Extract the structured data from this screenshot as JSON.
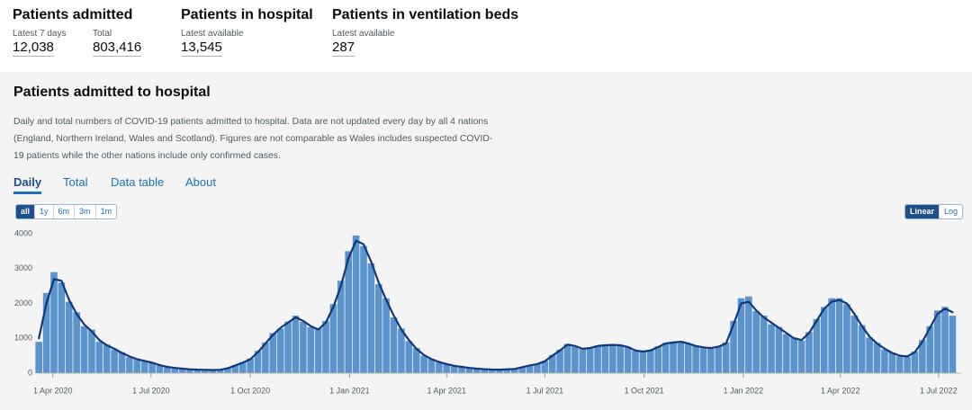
{
  "headline": [
    {
      "title": "Patients admitted",
      "metrics": [
        {
          "label": "Latest 7 days",
          "value": "12,038"
        },
        {
          "label": "Total",
          "value": "803,416"
        }
      ]
    },
    {
      "title": "Patients in hospital",
      "metrics": [
        {
          "label": "Latest available",
          "value": "13,545"
        }
      ]
    },
    {
      "title": "Patients in ventilation beds",
      "metrics": [
        {
          "label": "Latest available",
          "value": "287"
        }
      ]
    }
  ],
  "card": {
    "title": "Patients admitted to hospital",
    "description": "Daily and total numbers of COVID-19 patients admitted to hospital. Data are not updated every day by all 4 nations (England, Northern Ireland, Wales and Scotland). Figures are not comparable as Wales includes suspected COVID-19 patients while the other nations include only confirmed cases.",
    "tabs": [
      "Daily",
      "Total",
      "Data table",
      "About"
    ],
    "active_tab": 0,
    "range_buttons": [
      "all",
      "1y",
      "6m",
      "3m",
      "1m"
    ],
    "active_range": 0,
    "scale_buttons": [
      "Linear",
      "Log"
    ],
    "active_scale": 0
  },
  "chart_data": {
    "type": "bar",
    "x": [
      "2020-03-19",
      "2020-03-26",
      "2020-04-02",
      "2020-04-09",
      "2020-04-16",
      "2020-04-23",
      "2020-04-30",
      "2020-05-07",
      "2020-05-14",
      "2020-05-21",
      "2020-05-28",
      "2020-06-04",
      "2020-06-11",
      "2020-06-18",
      "2020-06-25",
      "2020-07-02",
      "2020-07-09",
      "2020-07-16",
      "2020-07-23",
      "2020-07-30",
      "2020-08-06",
      "2020-08-13",
      "2020-08-20",
      "2020-08-27",
      "2020-09-03",
      "2020-09-10",
      "2020-09-17",
      "2020-09-24",
      "2020-10-01",
      "2020-10-08",
      "2020-10-15",
      "2020-10-22",
      "2020-10-29",
      "2020-11-05",
      "2020-11-12",
      "2020-11-19",
      "2020-11-26",
      "2020-12-03",
      "2020-12-10",
      "2020-12-17",
      "2020-12-24",
      "2020-12-31",
      "2021-01-07",
      "2021-01-14",
      "2021-01-21",
      "2021-01-28",
      "2021-02-04",
      "2021-02-11",
      "2021-02-18",
      "2021-02-25",
      "2021-03-04",
      "2021-03-11",
      "2021-03-18",
      "2021-03-25",
      "2021-04-01",
      "2021-04-08",
      "2021-04-15",
      "2021-04-22",
      "2021-04-29",
      "2021-05-06",
      "2021-05-13",
      "2021-05-20",
      "2021-05-27",
      "2021-06-03",
      "2021-06-10",
      "2021-06-17",
      "2021-06-24",
      "2021-07-01",
      "2021-07-08",
      "2021-07-15",
      "2021-07-22",
      "2021-07-29",
      "2021-08-05",
      "2021-08-12",
      "2021-08-19",
      "2021-08-26",
      "2021-09-02",
      "2021-09-09",
      "2021-09-16",
      "2021-09-23",
      "2021-09-30",
      "2021-10-07",
      "2021-10-14",
      "2021-10-21",
      "2021-10-28",
      "2021-11-04",
      "2021-11-11",
      "2021-11-18",
      "2021-11-25",
      "2021-12-02",
      "2021-12-09",
      "2021-12-16",
      "2021-12-23",
      "2021-12-30",
      "2022-01-06",
      "2022-01-13",
      "2022-01-20",
      "2022-01-27",
      "2022-02-03",
      "2022-02-10",
      "2022-02-17",
      "2022-02-24",
      "2022-03-03",
      "2022-03-10",
      "2022-03-17",
      "2022-03-24",
      "2022-03-31",
      "2022-04-07",
      "2022-04-14",
      "2022-04-21",
      "2022-04-28",
      "2022-05-05",
      "2022-05-12",
      "2022-05-19",
      "2022-05-26",
      "2022-06-02",
      "2022-06-09",
      "2022-06-16",
      "2022-06-23",
      "2022-06-30",
      "2022-07-07",
      "2022-07-14"
    ],
    "series": [
      {
        "type": "bar",
        "color": "#5b93cc",
        "values": [
          900,
          2300,
          2900,
          2600,
          2050,
          1750,
          1350,
          1250,
          900,
          820,
          680,
          600,
          460,
          410,
          340,
          310,
          220,
          190,
          140,
          135,
          105,
          100,
          92,
          88,
          100,
          150,
          230,
          310,
          420,
          640,
          880,
          1150,
          1280,
          1480,
          1650,
          1470,
          1320,
          1280,
          1500,
          1980,
          2650,
          3500,
          3950,
          3650,
          3150,
          2550,
          2150,
          1600,
          1280,
          920,
          720,
          500,
          410,
          310,
          270,
          200,
          185,
          145,
          128,
          118,
          102,
          98,
          112,
          125,
          175,
          215,
          270,
          350,
          520,
          670,
          840,
          760,
          690,
          740,
          790,
          820,
          830,
          780,
          760,
          640,
          610,
          670,
          770,
          870,
          900,
          920,
          840,
          790,
          720,
          700,
          780,
          880,
          1500,
          2150,
          2200,
          1780,
          1650,
          1400,
          1330,
          1120,
          1020,
          930,
          1180,
          1550,
          1900,
          2150,
          2150,
          1980,
          1650,
          1380,
          1020,
          870,
          680,
          590,
          480,
          470,
          620,
          950,
          1350,
          1800,
          1900,
          1650
        ]
      },
      {
        "type": "line",
        "color": "#12377a",
        "values": [
          1000,
          2000,
          2700,
          2650,
          2100,
          1700,
          1400,
          1200,
          950,
          800,
          700,
          580,
          480,
          400,
          350,
          300,
          230,
          180,
          150,
          130,
          110,
          100,
          95,
          90,
          95,
          140,
          220,
          300,
          400,
          600,
          850,
          1100,
          1300,
          1450,
          1600,
          1500,
          1350,
          1250,
          1450,
          1900,
          2500,
          3300,
          3800,
          3700,
          3200,
          2600,
          2100,
          1650,
          1250,
          950,
          700,
          520,
          400,
          320,
          260,
          210,
          180,
          150,
          130,
          115,
          105,
          100,
          110,
          120,
          170,
          220,
          260,
          340,
          500,
          650,
          820,
          780,
          700,
          720,
          780,
          800,
          810,
          800,
          750,
          650,
          620,
          650,
          750,
          850,
          880,
          900,
          850,
          780,
          740,
          720,
          760,
          850,
          1400,
          2000,
          2050,
          1800,
          1600,
          1450,
          1300,
          1150,
          1000,
          950,
          1150,
          1500,
          1850,
          2050,
          2100,
          2000,
          1700,
          1350,
          1050,
          850,
          700,
          580,
          500,
          480,
          600,
          900,
          1300,
          1700,
          1850,
          1750
        ]
      }
    ],
    "xlim": [
      "2020-03-18",
      "2022-07-22"
    ],
    "xticks": [
      {
        "value": "2020-04-01",
        "label": "1 Apr 2020"
      },
      {
        "value": "2020-07-01",
        "label": "1 Jul 2020"
      },
      {
        "value": "2020-10-01",
        "label": "1 Oct 2020"
      },
      {
        "value": "2021-01-01",
        "label": "1 Jan 2021"
      },
      {
        "value": "2021-04-01",
        "label": "1 Apr 2021"
      },
      {
        "value": "2021-07-01",
        "label": "1 Jul 2021"
      },
      {
        "value": "2021-10-01",
        "label": "1 Oct 2021"
      },
      {
        "value": "2022-01-01",
        "label": "1 Jan 2022"
      },
      {
        "value": "2022-04-01",
        "label": "1 Apr 2022"
      },
      {
        "value": "2022-07-01",
        "label": "1 Jul 2022"
      }
    ],
    "ylim": [
      0,
      4000
    ],
    "yticks": [
      0,
      1000,
      2000,
      3000,
      4000
    ],
    "grid": false
  }
}
